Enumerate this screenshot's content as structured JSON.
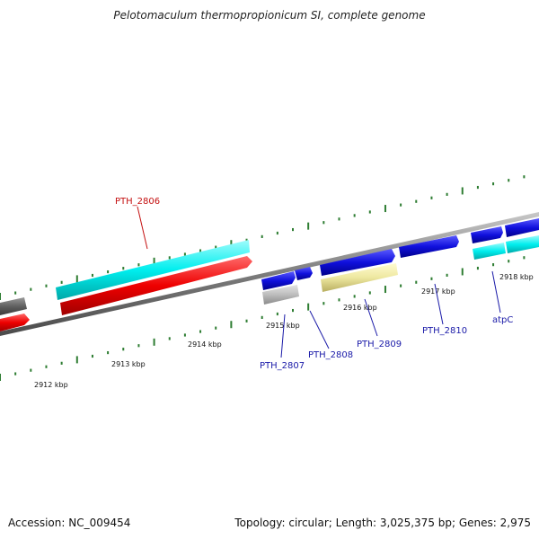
{
  "title": "Pelotomaculum thermopropionicum SI, complete genome",
  "footer": {
    "accession": "Accession: NC_009454",
    "summary": "Topology: circular; Length: 3,025,375 bp; Genes: 2,975"
  },
  "colors": {
    "backbone": "#808080",
    "tick": "#2e7d32",
    "forward_cds": "#00eeee",
    "reverse_cds": "#ee0000",
    "blue_cds": "#1010dd",
    "grey_cds": "#b8b8b8",
    "dark_cds": "#606060",
    "pale_cds": "#eee8a0",
    "label_blue": "#1a1aa8",
    "label_red": "#c41010"
  },
  "ticks": {
    "unit": "kbp",
    "labels": [
      "2912 kbp",
      "2913 kbp",
      "2914 kbp",
      "2915 kbp",
      "2916 kbp",
      "2917 kbp",
      "2918 kbp"
    ]
  },
  "genes": [
    {
      "id": "PTH_2806",
      "label": "PTH_2806",
      "label_color": "red"
    },
    {
      "id": "PTH_2807",
      "label": "PTH_2807",
      "label_color": "blue"
    },
    {
      "id": "PTH_2808",
      "label": "PTH_2808",
      "label_color": "blue"
    },
    {
      "id": "PTH_2809",
      "label": "PTH_2809",
      "label_color": "blue"
    },
    {
      "id": "PTH_2810",
      "label": "PTH_2810",
      "label_color": "blue"
    },
    {
      "id": "atpC",
      "label": "atpC",
      "label_color": "blue"
    }
  ]
}
